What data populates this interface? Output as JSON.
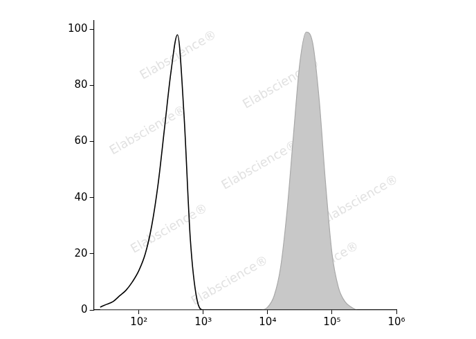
{
  "chart_data": {
    "type": "line",
    "log": "x",
    "grid": false,
    "annotations": [
      "Elabscience®"
    ],
    "x": [
      25.1,
      31.6,
      39.8,
      50.1,
      63.1,
      79.4,
      100,
      125.9,
      158.5,
      199.5,
      251.2,
      316.2,
      398.1,
      501.2,
      631,
      794.3,
      1000,
      1258.9,
      1584.9,
      1995.3,
      2511.9,
      3162.3,
      3981.1,
      5011.9,
      6309.6,
      7943.3,
      10000,
      12589,
      15849,
      19953,
      25119,
      31623,
      39811,
      50119,
      63096,
      79433,
      100000,
      125893,
      158489,
      199526,
      251189,
      316228,
      398107,
      501187,
      630957,
      794328,
      1000000
    ],
    "series": [
      {
        "type": "line",
        "color": "#000000",
        "values": [
          1,
          2,
          3,
          5,
          7,
          10,
          14,
          20,
          30,
          45,
          65,
          85,
          98,
          70,
          25,
          4,
          0,
          0,
          0,
          0,
          0,
          0,
          0,
          0,
          0,
          0,
          0,
          0,
          0,
          0,
          0,
          0,
          0,
          0,
          0,
          0,
          0,
          0,
          0,
          0,
          0,
          0,
          0,
          0,
          0,
          0,
          0
        ]
      },
      {
        "type": "area",
        "color": "#c8c8c8",
        "values": [
          0,
          0,
          0,
          0,
          0,
          0,
          0,
          0,
          0,
          0,
          0,
          0,
          0,
          0,
          0,
          0,
          0,
          0,
          0,
          0,
          0,
          0,
          0,
          0,
          0,
          0,
          1,
          5,
          15,
          35,
          62,
          88,
          99,
          95,
          75,
          45,
          20,
          8,
          3,
          1,
          0,
          0,
          0,
          0,
          0,
          0,
          0
        ]
      }
    ],
    "xlim": [
      20,
      1000000
    ],
    "xticks": [
      {
        "value": 100,
        "label": "10²"
      },
      {
        "value": 1000,
        "label": "10³"
      },
      {
        "value": 10000,
        "label": "10⁴"
      },
      {
        "value": 100000,
        "label": "10⁵"
      },
      {
        "value": 1000000,
        "label": "10⁶"
      }
    ],
    "ylim": [
      0,
      103
    ],
    "yticks": [
      0,
      20,
      40,
      60,
      80,
      100
    ]
  }
}
